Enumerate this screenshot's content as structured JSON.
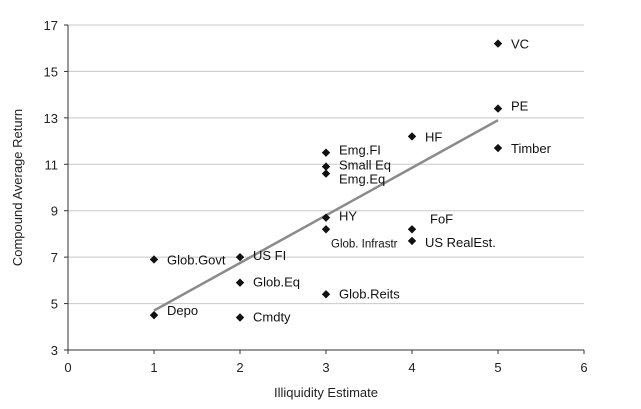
{
  "chart_data": {
    "type": "scatter",
    "xlabel": "Illiquidity Estimate",
    "ylabel": "Compound Average Return",
    "xlim": [
      0,
      6
    ],
    "ylim": [
      3,
      17
    ],
    "xticks": [
      0,
      1,
      2,
      3,
      4,
      5,
      6
    ],
    "yticks": [
      3,
      5,
      7,
      9,
      11,
      13,
      15,
      17
    ],
    "grid": "horizontal",
    "points": [
      {
        "label": "VC",
        "x": 5,
        "y": 16.2
      },
      {
        "label": "PE",
        "x": 5,
        "y": 13.4
      },
      {
        "label": "Timber",
        "x": 5,
        "y": 11.7
      },
      {
        "label": "Emg.FI",
        "x": 3,
        "y": 11.5
      },
      {
        "label": "HF",
        "x": 4,
        "y": 12.2
      },
      {
        "label": "Small Eq",
        "x": 3,
        "y": 10.9
      },
      {
        "label": "Emg.Eq",
        "x": 3,
        "y": 10.6
      },
      {
        "label": "HY",
        "x": 3,
        "y": 8.7
      },
      {
        "label": "Glob. Infrastr",
        "x": 3,
        "y": 8.2
      },
      {
        "label": "FoF",
        "x": 4,
        "y": 8.2
      },
      {
        "label": "US RealEst.",
        "x": 4,
        "y": 7.7
      },
      {
        "label": "Glob.Govt",
        "x": 1,
        "y": 6.9
      },
      {
        "label": "US FI",
        "x": 2,
        "y": 7.0
      },
      {
        "label": "Glob.Eq",
        "x": 2,
        "y": 5.9
      },
      {
        "label": "Glob.Reits",
        "x": 3,
        "y": 5.4
      },
      {
        "label": "Depo",
        "x": 1,
        "y": 4.5
      },
      {
        "label": "Cmdty",
        "x": 2,
        "y": 4.4
      }
    ],
    "trendline": {
      "x": [
        1,
        5
      ],
      "y": [
        4.7,
        12.9
      ]
    }
  }
}
